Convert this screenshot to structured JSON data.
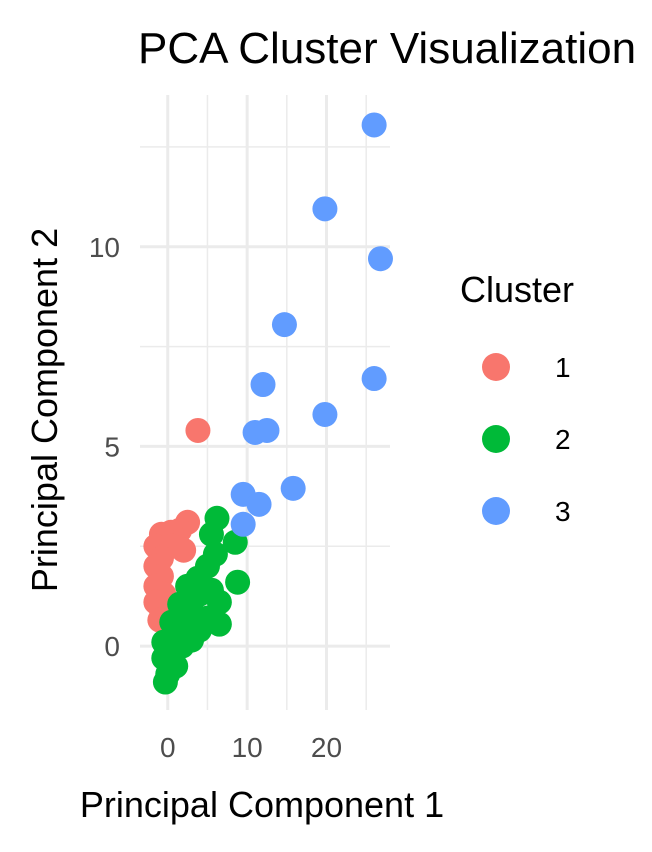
{
  "chart_data": {
    "type": "scatter",
    "title": "PCA Cluster Visualization",
    "xlabel": "Principal Component 1",
    "ylabel": "Principal Component 2",
    "xlim": [
      -3.5,
      28
    ],
    "ylim": [
      -1.6,
      13.8
    ],
    "x_ticks": [
      0,
      10,
      20
    ],
    "y_ticks": [
      0,
      5,
      10
    ],
    "x_minor": [
      5,
      15,
      25
    ],
    "y_minor": [
      2.5,
      7.5,
      12.5
    ],
    "grid": true,
    "legend": {
      "title": "Cluster",
      "position": "right"
    },
    "colors": {
      "1": "#F8766D",
      "2": "#00BA38",
      "3": "#619CFF"
    },
    "series": [
      {
        "name": "1",
        "points": [
          [
            3.8,
            5.4
          ],
          [
            2.5,
            3.1
          ],
          [
            1.5,
            2.9
          ],
          [
            0.4,
            2.85
          ],
          [
            -0.8,
            2.8
          ],
          [
            -1.5,
            2.5
          ],
          [
            0.5,
            2.5
          ],
          [
            2.0,
            2.4
          ],
          [
            -0.8,
            2.2
          ],
          [
            -1.5,
            2.0
          ],
          [
            -0.8,
            1.75
          ],
          [
            -1.5,
            1.5
          ],
          [
            -0.5,
            1.3
          ],
          [
            -1.5,
            1.1
          ],
          [
            -0.8,
            0.9
          ],
          [
            -1.0,
            0.65
          ]
        ]
      },
      {
        "name": "2",
        "points": [
          [
            6.2,
            3.2
          ],
          [
            5.5,
            2.8
          ],
          [
            8.5,
            2.6
          ],
          [
            6.0,
            2.3
          ],
          [
            5.0,
            2.0
          ],
          [
            3.8,
            1.7
          ],
          [
            8.8,
            1.6
          ],
          [
            2.5,
            1.5
          ],
          [
            5.5,
            1.4
          ],
          [
            4.0,
            1.3
          ],
          [
            6.5,
            1.1
          ],
          [
            1.5,
            1.05
          ],
          [
            3.0,
            0.9
          ],
          [
            5.0,
            0.7
          ],
          [
            0.5,
            0.6
          ],
          [
            6.5,
            0.55
          ],
          [
            2.5,
            0.5
          ],
          [
            4.0,
            0.4
          ],
          [
            1.2,
            0.3
          ],
          [
            3.0,
            0.15
          ],
          [
            -0.5,
            0.1
          ],
          [
            1.8,
            0.0
          ],
          [
            0.5,
            -0.15
          ],
          [
            -0.5,
            -0.3
          ],
          [
            1.0,
            -0.5
          ],
          [
            0.0,
            -0.7
          ],
          [
            -0.3,
            -0.9
          ]
        ]
      },
      {
        "name": "3",
        "points": [
          [
            26.0,
            13.05
          ],
          [
            19.8,
            10.95
          ],
          [
            26.8,
            9.7
          ],
          [
            14.7,
            8.05
          ],
          [
            12.0,
            6.55
          ],
          [
            26.0,
            6.7
          ],
          [
            19.8,
            5.8
          ],
          [
            11.0,
            5.35
          ],
          [
            12.5,
            5.4
          ],
          [
            15.8,
            3.95
          ],
          [
            9.5,
            3.8
          ],
          [
            11.5,
            3.55
          ],
          [
            9.5,
            3.05
          ]
        ]
      }
    ]
  }
}
